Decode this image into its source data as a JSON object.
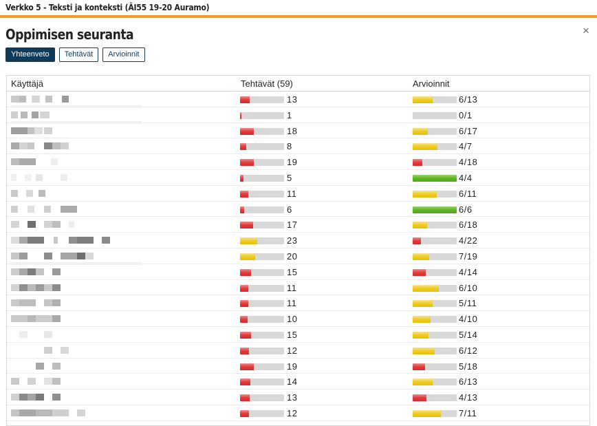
{
  "window": {
    "title": "Verkko 5 - Teksti ja konteksti (ÄI55 19-20 Auramo)"
  },
  "modal": {
    "title": "Oppimisen seuranta",
    "close_label": "×"
  },
  "tabs": [
    {
      "label": "Yhteenveto",
      "active": true
    },
    {
      "label": "Tehtävät",
      "active": false
    },
    {
      "label": "Arvioinnit",
      "active": false
    }
  ],
  "table": {
    "headers": {
      "user": "Käyttäjä",
      "tasks": "Tehtävät (59)",
      "reviews": "Arvioinnit"
    },
    "rows": [
      {
        "tasks_value": "13",
        "tasks_fraction": 0.22,
        "tasks_color": "red",
        "reviews_value": "6/13",
        "reviews_fraction": 0.46,
        "reviews_color": "yellow"
      },
      {
        "tasks_value": "1",
        "tasks_fraction": 0.02,
        "tasks_color": "red",
        "reviews_value": "0/1",
        "reviews_fraction": 0.0,
        "reviews_color": "yellow"
      },
      {
        "tasks_value": "18",
        "tasks_fraction": 0.31,
        "tasks_color": "red",
        "reviews_value": "6/17",
        "reviews_fraction": 0.35,
        "reviews_color": "yellow"
      },
      {
        "tasks_value": "8",
        "tasks_fraction": 0.14,
        "tasks_color": "red",
        "reviews_value": "4/7",
        "reviews_fraction": 0.57,
        "reviews_color": "yellow"
      },
      {
        "tasks_value": "19",
        "tasks_fraction": 0.32,
        "tasks_color": "red",
        "reviews_value": "4/18",
        "reviews_fraction": 0.22,
        "reviews_color": "red"
      },
      {
        "tasks_value": "5",
        "tasks_fraction": 0.08,
        "tasks_color": "red",
        "reviews_value": "4/4",
        "reviews_fraction": 1.0,
        "reviews_color": "green"
      },
      {
        "tasks_value": "11",
        "tasks_fraction": 0.19,
        "tasks_color": "red",
        "reviews_value": "6/11",
        "reviews_fraction": 0.55,
        "reviews_color": "yellow"
      },
      {
        "tasks_value": "6",
        "tasks_fraction": 0.1,
        "tasks_color": "red",
        "reviews_value": "6/6",
        "reviews_fraction": 1.0,
        "reviews_color": "green"
      },
      {
        "tasks_value": "17",
        "tasks_fraction": 0.29,
        "tasks_color": "red",
        "reviews_value": "6/18",
        "reviews_fraction": 0.33,
        "reviews_color": "yellow"
      },
      {
        "tasks_value": "23",
        "tasks_fraction": 0.39,
        "tasks_color": "yellow",
        "reviews_value": "4/22",
        "reviews_fraction": 0.18,
        "reviews_color": "red"
      },
      {
        "tasks_value": "20",
        "tasks_fraction": 0.34,
        "tasks_color": "yellow",
        "reviews_value": "7/19",
        "reviews_fraction": 0.37,
        "reviews_color": "yellow"
      },
      {
        "tasks_value": "15",
        "tasks_fraction": 0.25,
        "tasks_color": "red",
        "reviews_value": "4/14",
        "reviews_fraction": 0.29,
        "reviews_color": "red"
      },
      {
        "tasks_value": "11",
        "tasks_fraction": 0.19,
        "tasks_color": "red",
        "reviews_value": "6/10",
        "reviews_fraction": 0.6,
        "reviews_color": "yellow"
      },
      {
        "tasks_value": "11",
        "tasks_fraction": 0.19,
        "tasks_color": "red",
        "reviews_value": "5/11",
        "reviews_fraction": 0.45,
        "reviews_color": "yellow"
      },
      {
        "tasks_value": "10",
        "tasks_fraction": 0.17,
        "tasks_color": "red",
        "reviews_value": "4/10",
        "reviews_fraction": 0.4,
        "reviews_color": "yellow"
      },
      {
        "tasks_value": "15",
        "tasks_fraction": 0.25,
        "tasks_color": "red",
        "reviews_value": "5/14",
        "reviews_fraction": 0.36,
        "reviews_color": "yellow"
      },
      {
        "tasks_value": "12",
        "tasks_fraction": 0.2,
        "tasks_color": "red",
        "reviews_value": "6/12",
        "reviews_fraction": 0.5,
        "reviews_color": "yellow"
      },
      {
        "tasks_value": "19",
        "tasks_fraction": 0.32,
        "tasks_color": "red",
        "reviews_value": "5/18",
        "reviews_fraction": 0.28,
        "reviews_color": "red"
      },
      {
        "tasks_value": "14",
        "tasks_fraction": 0.24,
        "tasks_color": "red",
        "reviews_value": "6/13",
        "reviews_fraction": 0.46,
        "reviews_color": "yellow"
      },
      {
        "tasks_value": "13",
        "tasks_fraction": 0.22,
        "tasks_color": "red",
        "reviews_value": "4/13",
        "reviews_fraction": 0.31,
        "reviews_color": "red"
      },
      {
        "tasks_value": "12",
        "tasks_fraction": 0.2,
        "tasks_color": "red",
        "reviews_value": "7/11",
        "reviews_fraction": 0.64,
        "reviews_color": "yellow"
      }
    ]
  }
}
